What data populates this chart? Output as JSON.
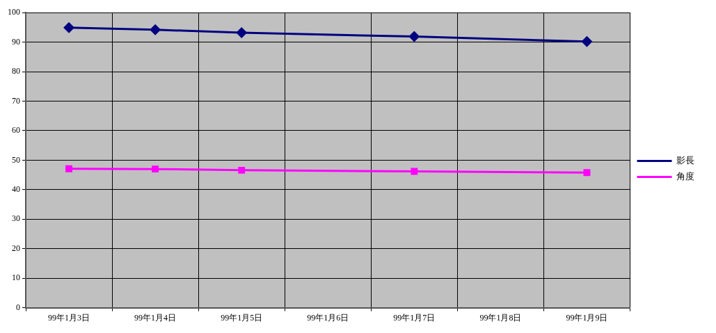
{
  "chart_data": {
    "type": "line",
    "categories": [
      "99年1月3日",
      "99年1月4日",
      "99年1月5日",
      "99年1月6日",
      "99年1月7日",
      "99年1月8日",
      "99年1月9日"
    ],
    "series": [
      {
        "name": "影長",
        "color": "#000080",
        "marker": "diamond",
        "values": [
          94.9,
          94.2,
          93.2,
          null,
          91.9,
          null,
          90.2
        ]
      },
      {
        "name": "角度",
        "color": "#ff00ff",
        "marker": "square",
        "values": [
          47.1,
          47.0,
          46.6,
          null,
          46.2,
          null,
          45.8
        ]
      }
    ],
    "ylim": [
      0,
      100
    ],
    "yticks": [
      0,
      10,
      20,
      30,
      40,
      50,
      60,
      70,
      80,
      90,
      100
    ],
    "grid": true,
    "legend": "right"
  }
}
